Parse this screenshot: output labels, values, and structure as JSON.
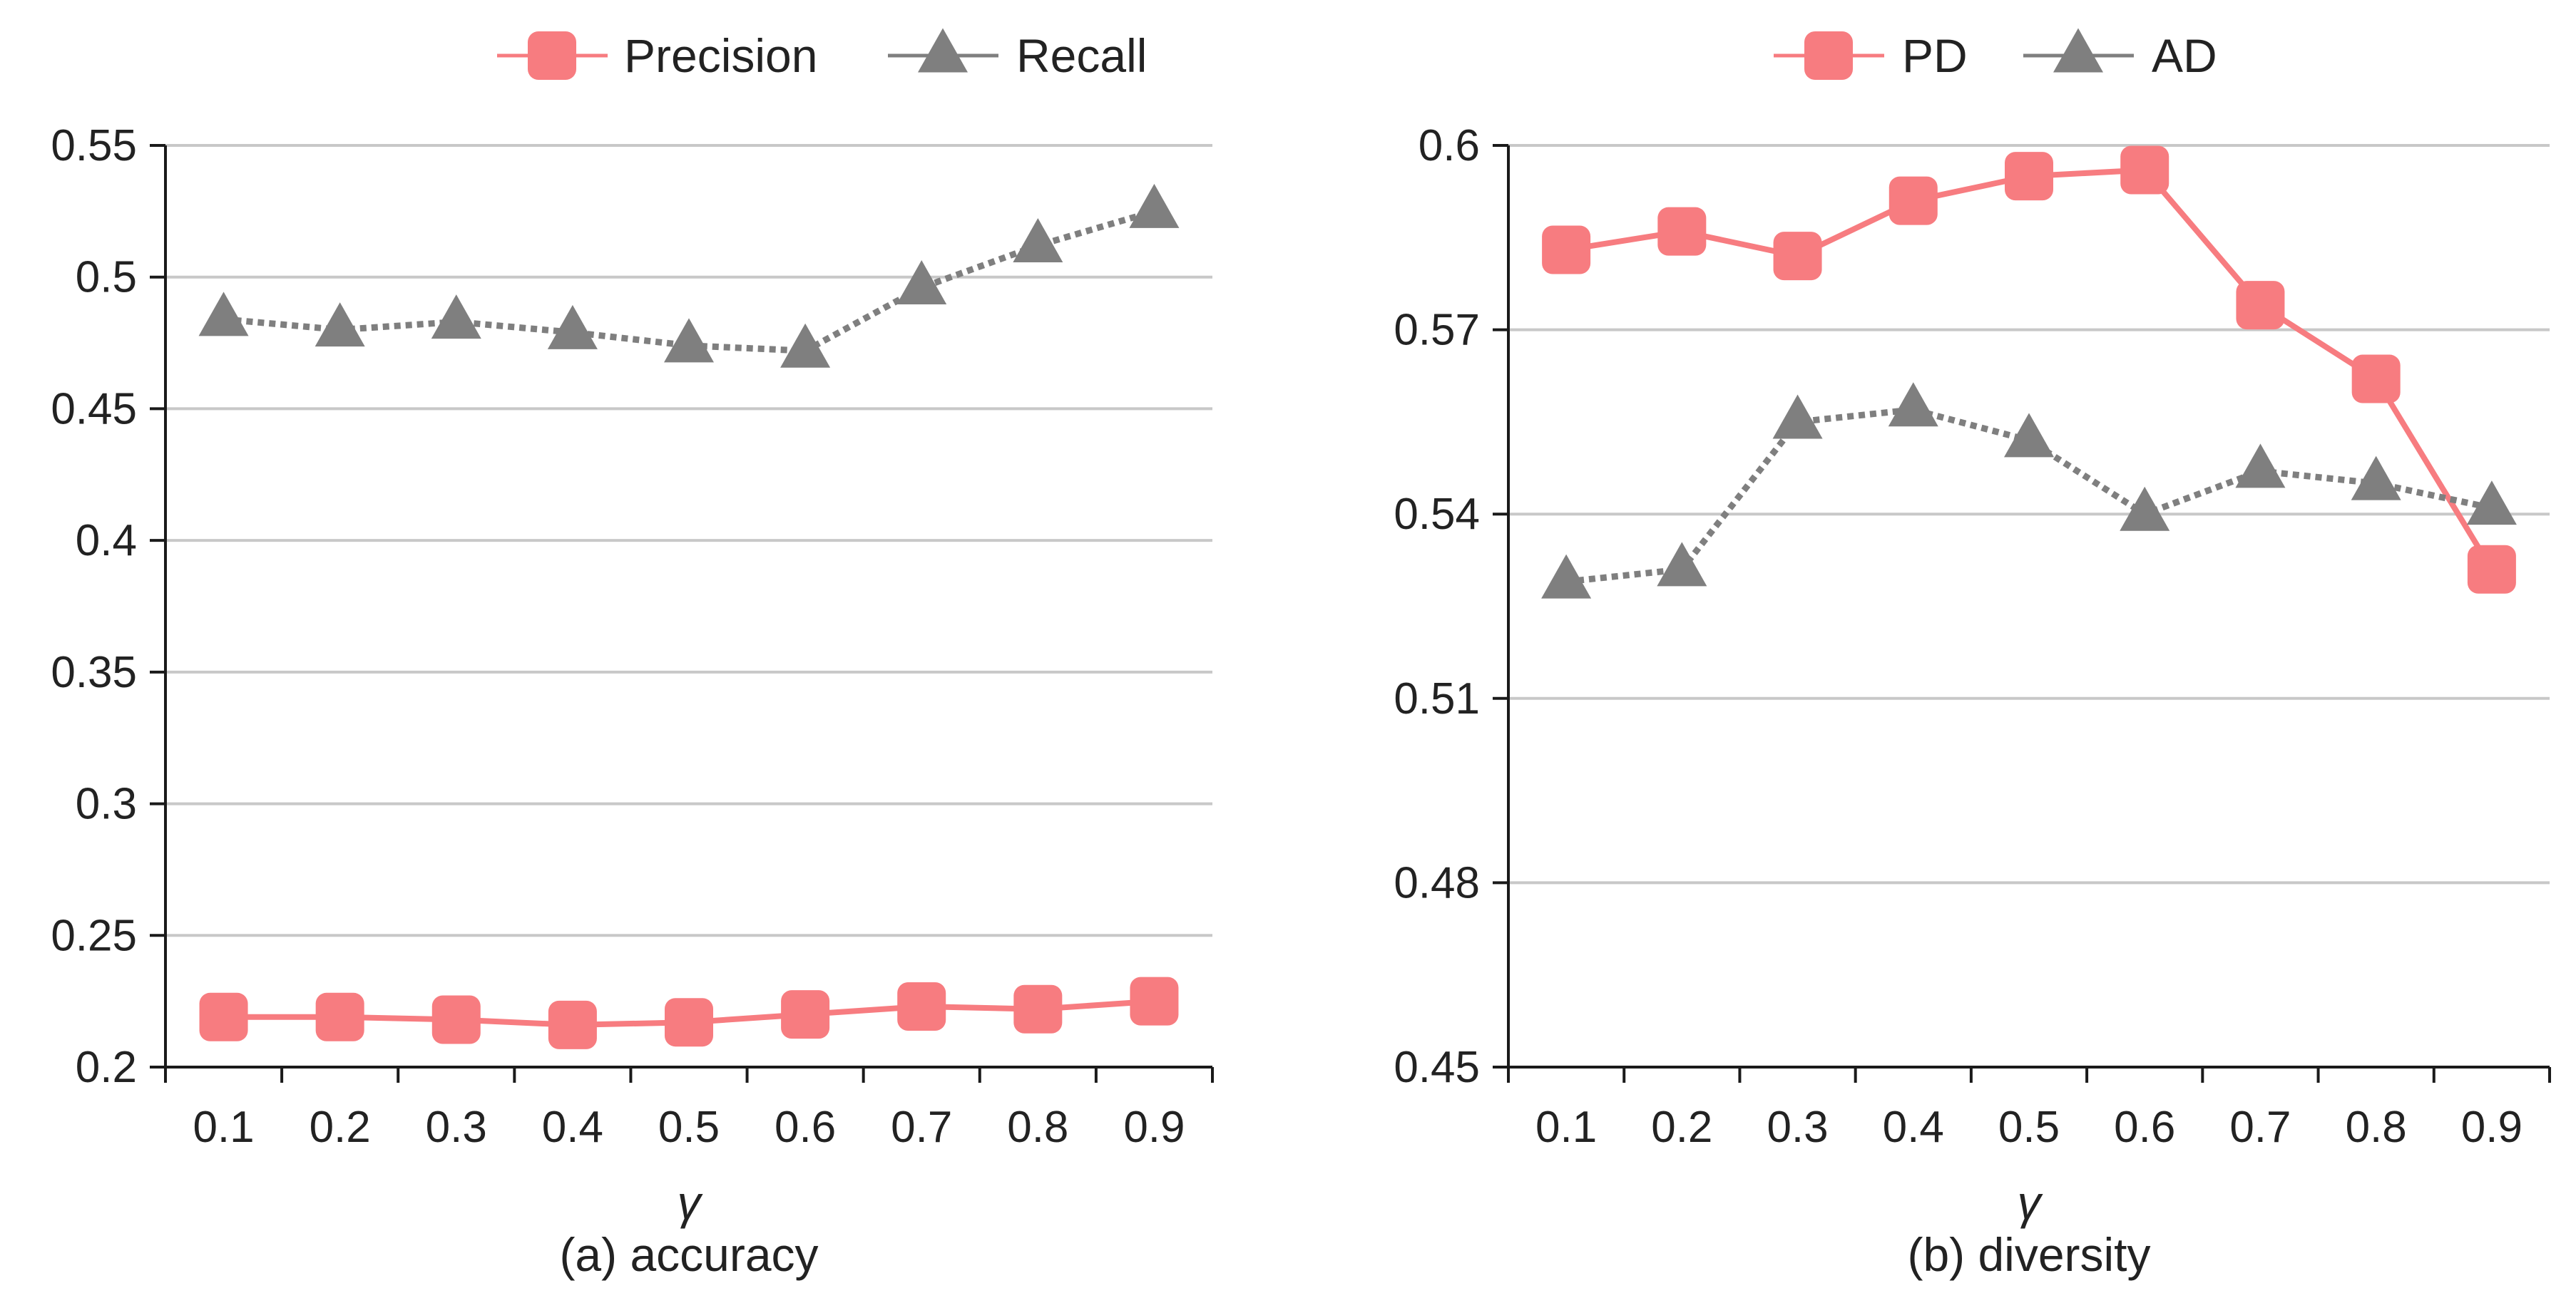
{
  "colors": {
    "series_a": "#F77C80",
    "series_b": "#7F7F7F",
    "grid": "#C8C8C8",
    "axis": "#1A1A1A"
  },
  "chart_data": [
    {
      "type": "line",
      "caption": "(a) accuracy",
      "xlabel": "γ",
      "ylabel": "",
      "categories": [
        "0.1",
        "0.2",
        "0.3",
        "0.4",
        "0.5",
        "0.6",
        "0.7",
        "0.8",
        "0.9"
      ],
      "ylim": [
        0.2,
        0.55
      ],
      "yticks": [
        "0.2",
        "0.25",
        "0.3",
        "0.35",
        "0.4",
        "0.45",
        "0.5",
        "0.55"
      ],
      "grid": true,
      "legend_position": "top-right",
      "series": [
        {
          "name": "Precision",
          "marker": "square",
          "line": "solid",
          "values": [
            0.219,
            0.219,
            0.218,
            0.216,
            0.217,
            0.22,
            0.223,
            0.222,
            0.225
          ]
        },
        {
          "name": "Recall",
          "marker": "triangle",
          "line": "dotted",
          "values": [
            0.484,
            0.48,
            0.483,
            0.479,
            0.474,
            0.472,
            0.496,
            0.512,
            0.525
          ]
        }
      ]
    },
    {
      "type": "line",
      "caption": "(b) diversity",
      "xlabel": "γ",
      "ylabel": "",
      "categories": [
        "0.1",
        "0.2",
        "0.3",
        "0.4",
        "0.5",
        "0.6",
        "0.7",
        "0.8",
        "0.9"
      ],
      "ylim": [
        0.45,
        0.6
      ],
      "yticks": [
        "0.45",
        "0.48",
        "0.51",
        "0.54",
        "0.57",
        "0.6"
      ],
      "grid": true,
      "legend_position": "top-right",
      "series": [
        {
          "name": "PD",
          "marker": "square",
          "line": "solid",
          "values": [
            0.583,
            0.586,
            0.582,
            0.591,
            0.595,
            0.596,
            0.574,
            0.562,
            0.531
          ]
        },
        {
          "name": "AD",
          "marker": "triangle",
          "line": "dotted",
          "values": [
            0.529,
            0.531,
            0.555,
            0.557,
            0.552,
            0.54,
            0.547,
            0.545,
            0.541
          ]
        }
      ]
    }
  ]
}
